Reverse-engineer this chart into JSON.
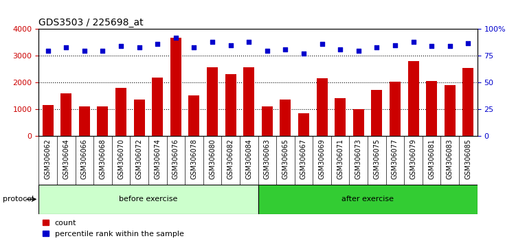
{
  "title": "GDS3503 / 225698_at",
  "categories": [
    "GSM306062",
    "GSM306064",
    "GSM306066",
    "GSM306068",
    "GSM306070",
    "GSM306072",
    "GSM306074",
    "GSM306076",
    "GSM306078",
    "GSM306080",
    "GSM306082",
    "GSM306084",
    "GSM306063",
    "GSM306065",
    "GSM306067",
    "GSM306069",
    "GSM306071",
    "GSM306073",
    "GSM306075",
    "GSM306077",
    "GSM306079",
    "GSM306081",
    "GSM306083",
    "GSM306085"
  ],
  "counts": [
    1150,
    1600,
    1100,
    1100,
    1800,
    1380,
    2180,
    3680,
    1530,
    2570,
    2320,
    2570,
    1100,
    1360,
    860,
    2170,
    1430,
    1000,
    1720,
    2030,
    2800,
    2050,
    1900,
    2560
  ],
  "percentiles": [
    80,
    83,
    80,
    80,
    84,
    83,
    86,
    92,
    83,
    88,
    85,
    88,
    80,
    81,
    77,
    86,
    81,
    80,
    83,
    85,
    88,
    84,
    84,
    87
  ],
  "before_count": 12,
  "after_count": 12,
  "bar_color": "#cc0000",
  "dot_color": "#0000cc",
  "before_color": "#ccffcc",
  "after_color": "#33cc33",
  "bg_color": "#ffffff",
  "ylim_left": [
    0,
    4000
  ],
  "ylim_right": [
    0,
    100
  ],
  "yticks_left": [
    0,
    1000,
    2000,
    3000,
    4000
  ],
  "yticks_right": [
    0,
    25,
    50,
    75,
    100
  ],
  "ytick_labels_right": [
    "0",
    "25",
    "50",
    "75",
    "100%"
  ],
  "protocol_label": "protocol",
  "before_label": "before exercise",
  "after_label": "after exercise",
  "legend_count_label": "count",
  "legend_pct_label": "percentile rank within the sample"
}
